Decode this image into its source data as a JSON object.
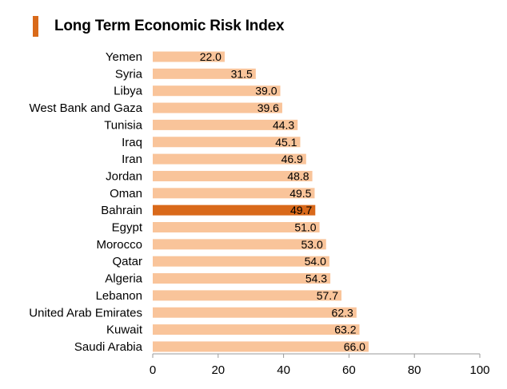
{
  "colors": {
    "accent": "#d96a1a",
    "bar": "#f9c49a",
    "bar_highlight": "#d9691a",
    "axis": "#9a9a9a"
  },
  "chart_data": {
    "type": "bar",
    "orientation": "horizontal",
    "title": "Long Term Economic Risk Index",
    "categories": [
      "Yemen",
      "Syria",
      "Libya",
      "West Bank and Gaza",
      "Tunisia",
      "Iraq",
      "Iran",
      "Jordan",
      "Oman",
      "Bahrain",
      "Egypt",
      "Morocco",
      "Qatar",
      "Algeria",
      "Lebanon",
      "United Arab Emirates",
      "Kuwait",
      "Saudi Arabia"
    ],
    "values": [
      22.0,
      31.5,
      39.0,
      39.6,
      44.3,
      45.1,
      46.9,
      48.8,
      49.5,
      49.7,
      51.0,
      53.0,
      54.0,
      54.3,
      57.7,
      62.3,
      63.2,
      66.0
    ],
    "value_labels": [
      "22.0",
      "31.5",
      "39.0",
      "39.6",
      "44.3",
      "45.1",
      "46.9",
      "48.8",
      "49.5",
      "49.7",
      "51.0",
      "53.0",
      "54.0",
      "54.3",
      "57.7",
      "62.3",
      "63.2",
      "66.0"
    ],
    "highlight_category": "Bahrain",
    "xlim": [
      0,
      100
    ],
    "xticks": [
      0,
      20,
      40,
      60,
      80,
      100
    ],
    "xtick_labels": [
      "0",
      "20",
      "40",
      "60",
      "80",
      "100"
    ],
    "xlabel": "",
    "ylabel": "",
    "grid": false,
    "legend": "none"
  }
}
